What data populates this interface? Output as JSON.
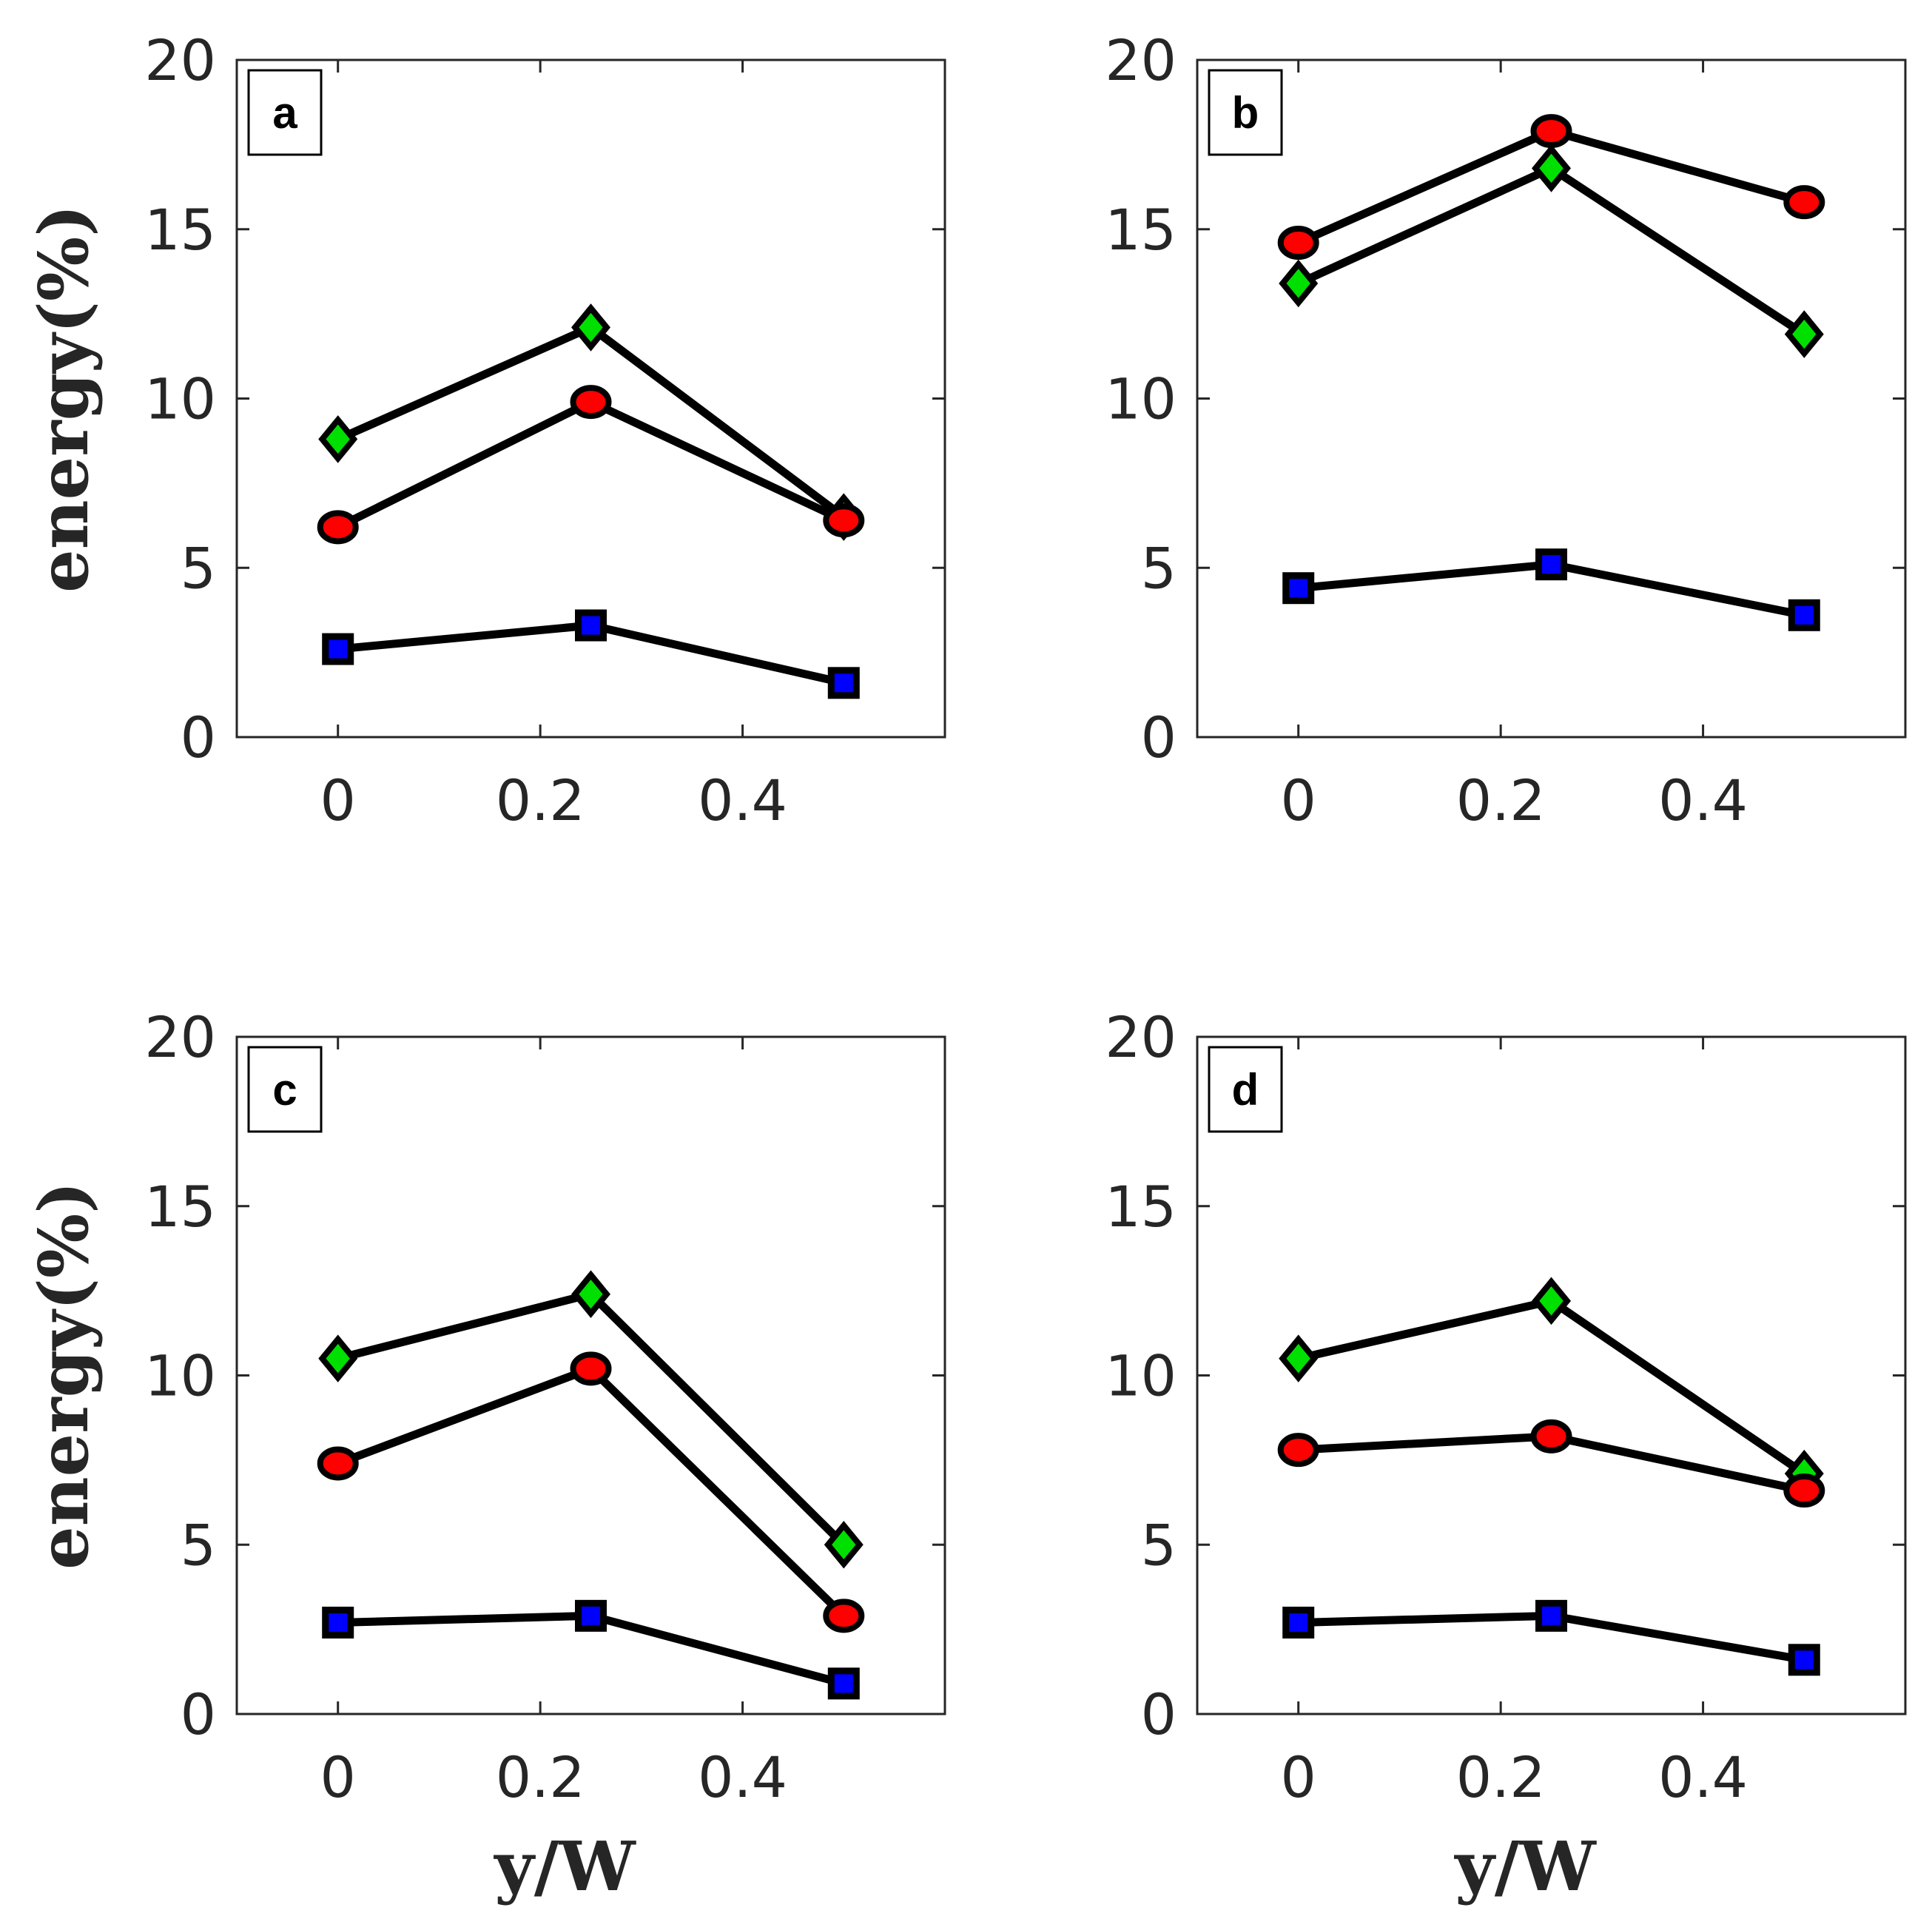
{
  "chart_data": [
    {
      "type": "line",
      "panel_label": "a",
      "x": [
        0,
        0.25,
        0.5
      ],
      "xticks": [
        0,
        0.2,
        0.4
      ],
      "xtick_labels": [
        "0",
        "0.2",
        "0.4"
      ],
      "xlim": [
        -0.1,
        0.6
      ],
      "yticks": [
        0,
        5,
        10,
        15,
        20
      ],
      "ytick_labels": [
        "0",
        "5",
        "10",
        "15",
        "20"
      ],
      "ylim": [
        0,
        20
      ],
      "ylabel": "energy(%)",
      "xlabel": "",
      "grid": false,
      "series": [
        {
          "name": "green-diamond",
          "marker": "diamond",
          "color": "#00e000",
          "values": [
            8.8,
            12.1,
            6.5
          ]
        },
        {
          "name": "red-circle",
          "marker": "circle",
          "color": "#ff0000",
          "values": [
            6.2,
            9.9,
            6.4
          ]
        },
        {
          "name": "blue-square",
          "marker": "square",
          "color": "#0000ff",
          "values": [
            2.6,
            3.3,
            1.6
          ]
        }
      ]
    },
    {
      "type": "line",
      "panel_label": "b",
      "x": [
        0,
        0.25,
        0.5
      ],
      "xticks": [
        0,
        0.2,
        0.4
      ],
      "xtick_labels": [
        "0",
        "0.2",
        "0.4"
      ],
      "xlim": [
        -0.1,
        0.6
      ],
      "yticks": [
        0,
        5,
        10,
        15,
        20
      ],
      "ytick_labels": [
        "0",
        "5",
        "10",
        "15",
        "20"
      ],
      "ylim": [
        0,
        20
      ],
      "ylabel": "",
      "xlabel": "",
      "grid": false,
      "series": [
        {
          "name": "red-circle",
          "marker": "circle",
          "color": "#ff0000",
          "values": [
            14.6,
            17.9,
            15.8
          ]
        },
        {
          "name": "green-diamond",
          "marker": "diamond",
          "color": "#00e000",
          "values": [
            13.4,
            16.8,
            11.9
          ]
        },
        {
          "name": "blue-square",
          "marker": "square",
          "color": "#0000ff",
          "values": [
            4.4,
            5.1,
            3.6
          ]
        }
      ]
    },
    {
      "type": "line",
      "panel_label": "c",
      "x": [
        0,
        0.25,
        0.5
      ],
      "xticks": [
        0,
        0.2,
        0.4
      ],
      "xtick_labels": [
        "0",
        "0.2",
        "0.4"
      ],
      "xlim": [
        -0.1,
        0.6
      ],
      "yticks": [
        0,
        5,
        10,
        15,
        20
      ],
      "ytick_labels": [
        "0",
        "5",
        "10",
        "15",
        "20"
      ],
      "ylim": [
        0,
        20
      ],
      "ylabel": "energy(%)",
      "xlabel": "y/W",
      "grid": false,
      "series": [
        {
          "name": "green-diamond",
          "marker": "diamond",
          "color": "#00e000",
          "values": [
            10.5,
            12.4,
            5.0
          ]
        },
        {
          "name": "red-circle",
          "marker": "circle",
          "color": "#ff0000",
          "values": [
            7.4,
            10.2,
            2.9
          ]
        },
        {
          "name": "blue-square",
          "marker": "square",
          "color": "#0000ff",
          "values": [
            2.7,
            2.9,
            0.9
          ]
        }
      ]
    },
    {
      "type": "line",
      "panel_label": "d",
      "x": [
        0,
        0.25,
        0.5
      ],
      "xticks": [
        0,
        0.2,
        0.4
      ],
      "xtick_labels": [
        "0",
        "0.2",
        "0.4"
      ],
      "xlim": [
        -0.1,
        0.6
      ],
      "yticks": [
        0,
        5,
        10,
        15,
        20
      ],
      "ytick_labels": [
        "0",
        "5",
        "10",
        "15",
        "20"
      ],
      "ylim": [
        0,
        20
      ],
      "ylabel": "",
      "xlabel": "y/W",
      "grid": false,
      "series": [
        {
          "name": "green-diamond",
          "marker": "diamond",
          "color": "#00e000",
          "values": [
            10.5,
            12.2,
            7.1
          ]
        },
        {
          "name": "red-circle",
          "marker": "circle",
          "color": "#ff0000",
          "values": [
            7.8,
            8.2,
            6.6
          ]
        },
        {
          "name": "blue-square",
          "marker": "square",
          "color": "#0000ff",
          "values": [
            2.7,
            2.9,
            1.6
          ]
        }
      ]
    }
  ]
}
